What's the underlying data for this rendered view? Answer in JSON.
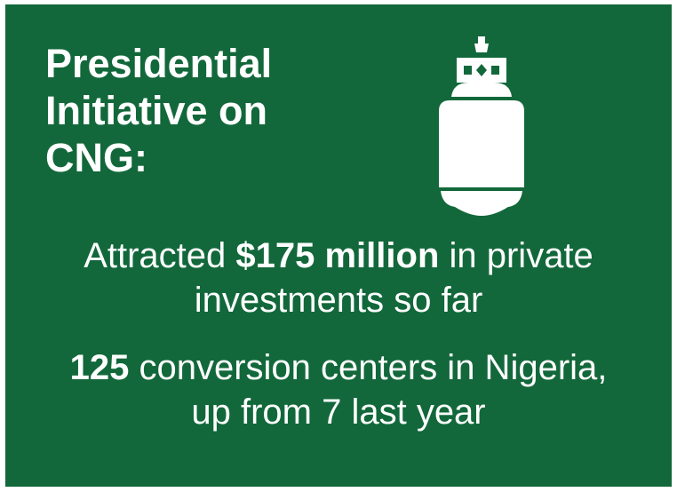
{
  "title_lines": [
    "Presidential",
    "Initiative on",
    "CNG:"
  ],
  "icon": "gas-cylinder-icon",
  "colors": {
    "background": "#12683a",
    "text": "#ffffff"
  },
  "stat1": {
    "prefix": "Attracted ",
    "highlight": "$175 million",
    "suffix": " in private",
    "line2": "investments so far"
  },
  "stat2": {
    "highlight": "125",
    "suffix": " conversion centers in Nigeria,",
    "line2": "up from 7 last year"
  }
}
